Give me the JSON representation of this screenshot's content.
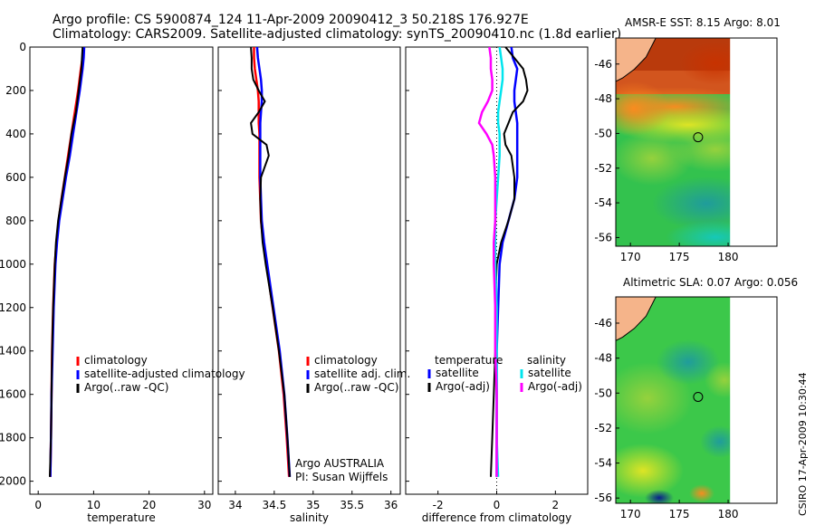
{
  "header": {
    "line1": "Argo profile: CS 5900874_124 11-Apr-2009 20090412_3 50.218S 176.927E",
    "line2": "Climatology: CARS2009. Satellite-adjusted climatology: synTS_20090410.nc (1.8d earlier)"
  },
  "stamp": "CSIRO 17-Apr-2009 10:30:44",
  "colors": {
    "climatology": "#ff0000",
    "satellite": "#0000ff",
    "argo": "#000000",
    "satellite_salinity": "#00e5ee",
    "argo_salinity_adj": "#ff00ff",
    "land": "#f5b48a"
  },
  "chart_data": [
    {
      "type": "line",
      "name": "temperature-profile",
      "xlabel": "temperature",
      "ylabel": "",
      "xlim": [
        -1.5,
        31.5
      ],
      "ylim": [
        2060,
        0
      ],
      "x_ticks": [
        "0",
        "10",
        "20",
        "30"
      ],
      "y_ticks": [
        "0",
        "200",
        "400",
        "600",
        "800",
        "1000",
        "1200",
        "1400",
        "1600",
        "1800",
        "2000"
      ],
      "depth": [
        0,
        50,
        100,
        200,
        300,
        400,
        500,
        600,
        700,
        800,
        900,
        1000,
        1200,
        1400,
        1600,
        1800,
        1980
      ],
      "series": [
        {
          "name": "climatology",
          "values": [
            8.1,
            8.0,
            7.7,
            7.2,
            6.6,
            6.0,
            5.4,
            4.8,
            4.2,
            3.7,
            3.3,
            3.0,
            2.7,
            2.5,
            2.4,
            2.3,
            2.2
          ]
        },
        {
          "name": "satellite-adjusted climatology",
          "values": [
            8.3,
            8.2,
            8.0,
            7.5,
            6.9,
            6.3,
            5.7,
            5.0,
            4.4,
            3.8,
            3.4,
            3.1,
            2.8,
            2.6,
            2.4,
            2.3,
            2.2
          ]
        },
        {
          "name": "Argo(..raw -QC)",
          "values": [
            8.0,
            7.9,
            7.8,
            7.3,
            6.8,
            6.0,
            5.5,
            4.8,
            4.2,
            3.6,
            3.2,
            3.0,
            2.7,
            2.5,
            2.4,
            2.3,
            2.1
          ]
        }
      ],
      "legend": {
        "placement": "middle-right",
        "entries": [
          "climatology",
          "satellite-adjusted climatology",
          "Argo(..raw -QC)"
        ]
      }
    },
    {
      "type": "line",
      "name": "salinity-profile",
      "xlabel": "salinity",
      "ylabel": "",
      "xlim": [
        33.78,
        36.12
      ],
      "ylim": [
        2060,
        0
      ],
      "x_ticks": [
        "34",
        "34.5",
        "35",
        "35.5",
        "36"
      ],
      "depth": [
        0,
        50,
        100,
        150,
        200,
        250,
        300,
        350,
        400,
        450,
        500,
        600,
        700,
        800,
        900,
        1000,
        1200,
        1400,
        1600,
        1800,
        1980
      ],
      "series": [
        {
          "name": "climatology",
          "values": [
            34.24,
            34.24,
            34.25,
            34.27,
            34.29,
            34.3,
            34.3,
            34.3,
            34.31,
            34.31,
            34.31,
            34.31,
            34.32,
            34.33,
            34.36,
            34.4,
            34.48,
            34.56,
            34.62,
            34.66,
            34.69
          ]
        },
        {
          "name": "satellite adj. clim.",
          "values": [
            34.28,
            34.29,
            34.31,
            34.33,
            34.34,
            34.34,
            34.33,
            34.32,
            34.32,
            34.32,
            34.32,
            34.32,
            34.33,
            34.34,
            34.37,
            34.41,
            34.49,
            34.57,
            34.63,
            34.67,
            34.7
          ]
        },
        {
          "name": "Argo(..raw -QC)",
          "values": [
            34.2,
            34.21,
            34.21,
            34.23,
            34.3,
            34.38,
            34.3,
            34.2,
            34.22,
            34.4,
            34.43,
            34.33,
            34.32,
            34.33,
            34.35,
            34.39,
            34.48,
            34.56,
            34.63,
            34.67,
            34.7
          ]
        }
      ],
      "legend": {
        "placement": "middle-right",
        "entries": [
          "climatology",
          "satellite adj. clim.",
          "Argo(..raw -QC)"
        ]
      },
      "annotations": [
        "Argo AUSTRALIA",
        "PI: Susan Wijffels"
      ]
    },
    {
      "type": "line",
      "name": "difference-profile",
      "xlabel": "difference from climatology",
      "ylabel": "",
      "xlim": [
        -3.1,
        3.1
      ],
      "ylim": [
        2060,
        0
      ],
      "x_ticks": [
        "-2",
        "0",
        "2"
      ],
      "depth": [
        0,
        50,
        100,
        150,
        200,
        250,
        300,
        350,
        400,
        450,
        500,
        600,
        700,
        800,
        900,
        1000,
        1200,
        1400,
        1600,
        1800,
        1980
      ],
      "series": [
        {
          "name": "temperature satellite",
          "values": [
            0.5,
            0.55,
            0.7,
            0.65,
            0.6,
            0.6,
            0.65,
            0.7,
            0.7,
            0.7,
            0.7,
            0.7,
            0.6,
            0.4,
            0.2,
            0.1,
            0.05,
            0.0,
            0.0,
            0.0,
            0.0
          ]
        },
        {
          "name": "temperature Argo(-adj)",
          "values": [
            0.3,
            0.6,
            0.9,
            1.0,
            1.05,
            0.9,
            0.55,
            0.4,
            0.25,
            0.3,
            0.5,
            0.6,
            0.6,
            0.4,
            0.15,
            0.0,
            -0.05,
            -0.05,
            -0.1,
            -0.15,
            -0.2
          ]
        },
        {
          "name": "salinity satellite",
          "values": [
            0.1,
            0.15,
            0.2,
            0.2,
            0.15,
            0.1,
            0.05,
            0.05,
            0.1,
            0.1,
            0.1,
            0.05,
            0.0,
            -0.05,
            -0.05,
            -0.05,
            0.0,
            0.0,
            0.0,
            0.0,
            0.05
          ]
        },
        {
          "name": "salinity Argo(-adj)",
          "values": [
            -0.25,
            -0.2,
            -0.2,
            -0.15,
            -0.15,
            -0.3,
            -0.5,
            -0.6,
            -0.35,
            -0.15,
            -0.1,
            -0.05,
            -0.05,
            -0.05,
            -0.1,
            -0.1,
            -0.05,
            -0.05,
            0.0,
            0.0,
            0.0
          ]
        }
      ],
      "legend": {
        "placement": "middle",
        "group_temperature": "temperature",
        "group_salinity": "salinity",
        "entries_temperature": [
          "satellite",
          "Argo(-adj)"
        ],
        "entries_salinity": [
          "satellite",
          "Argo(-adj)"
        ]
      }
    },
    {
      "type": "heatmap",
      "name": "amsre-sst-map",
      "title": "AMSR-E SST: 8.15 Argo: 8.01",
      "x_ticks": [
        "170",
        "175",
        "180"
      ],
      "y_ticks": [
        "-46",
        "-48",
        "-50",
        "-52",
        "-54",
        "-56"
      ],
      "xlim": [
        168.5,
        185
      ],
      "ylim": [
        -56.5,
        -44.5
      ],
      "data_xlim": [
        168.5,
        180.2
      ],
      "float_position": {
        "lon": 176.927,
        "lat": -50.218
      }
    },
    {
      "type": "heatmap",
      "name": "altimetric-sla-map",
      "title": "Altimetric SLA: 0.07 Argo: 0.056",
      "x_ticks": [
        "170",
        "175",
        "180"
      ],
      "y_ticks": [
        "-46",
        "-48",
        "-50",
        "-52",
        "-54",
        "-56"
      ],
      "xlim": [
        168.5,
        185
      ],
      "ylim": [
        -56.3,
        -44.5
      ],
      "data_xlim": [
        168.5,
        180.2
      ],
      "float_position": {
        "lon": 176.927,
        "lat": -50.218
      }
    }
  ]
}
